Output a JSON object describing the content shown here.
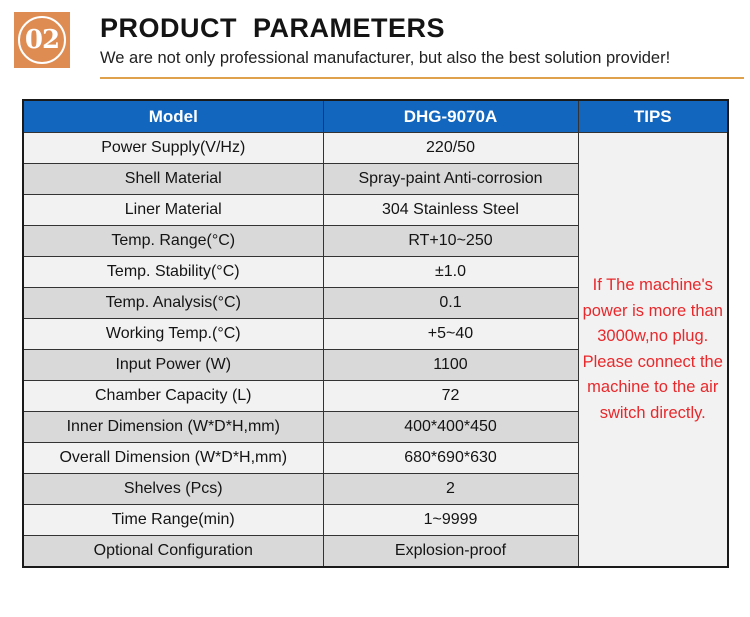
{
  "header": {
    "badge": "02",
    "title": "PRODUCT  PARAMETERS",
    "subtitle": "We are not only professional manufacturer, but also the best solution provider!"
  },
  "colors": {
    "header_blue": "#1266be",
    "badge_orange": "#de8c52",
    "rule_orange": "#dfa14c",
    "tips_red": "#e8282b",
    "row_light": "#f2f2f2",
    "row_dark": "#d9d9d9"
  },
  "table": {
    "columns": [
      "Model",
      "DHG-9070A",
      "TIPS"
    ],
    "rows": [
      {
        "label": "Power Supply(V/Hz)",
        "value": "220/50"
      },
      {
        "label": "Shell Material",
        "value": "Spray-paint Anti-corrosion"
      },
      {
        "label": "Liner Material",
        "value": "304 Stainless Steel"
      },
      {
        "label": "Temp. Range(°C)",
        "value": "RT+10~250"
      },
      {
        "label": "Temp. Stability(°C)",
        "value": "±1.0"
      },
      {
        "label": "Temp. Analysis(°C)",
        "value": "0.1"
      },
      {
        "label": "Working Temp.(°C)",
        "value": "+5~40"
      },
      {
        "label": "Input Power (W)",
        "value": "1100"
      },
      {
        "label": "Chamber Capacity (L)",
        "value": "72"
      },
      {
        "label": "Inner Dimension (W*D*H,mm)",
        "value": "400*400*450"
      },
      {
        "label": "Overall Dimension (W*D*H,mm)",
        "value": "680*690*630"
      },
      {
        "label": "Shelves (Pcs)",
        "value": "2"
      },
      {
        "label": "Time Range(min)",
        "value": "1~9999"
      },
      {
        "label": "Optional Configuration",
        "value": "Explosion-proof"
      }
    ],
    "tips": "If The machine's power is more than 3000w,no plug. Please connect the machine to the air switch directly."
  }
}
